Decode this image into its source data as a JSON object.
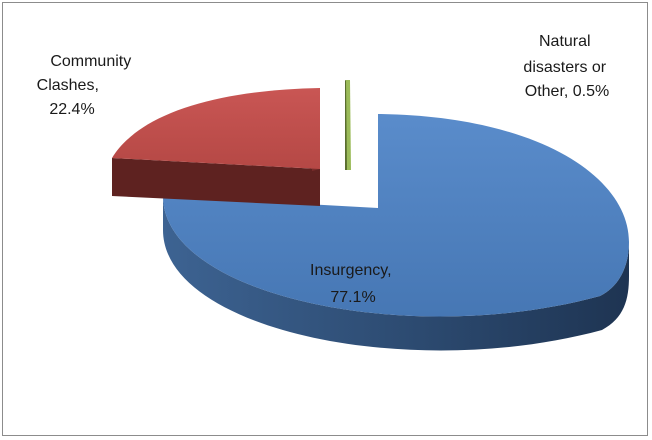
{
  "chart_data": {
    "type": "pie",
    "style": "3d-exploded",
    "slices": [
      {
        "category": "Insurgency",
        "value": 77.1,
        "label": [
          "Insurgency,",
          "77.1%"
        ],
        "color": "#4f81bd",
        "side_color": "#2c4a70"
      },
      {
        "category": "Community Clashes",
        "value": 22.4,
        "label": [
          "Community",
          "Clashes,",
          "22.4%"
        ],
        "color": "#c0504d",
        "side_color": "#5e2220"
      },
      {
        "category": "Natural disasters or Other",
        "value": 0.5,
        "label": [
          "Natural",
          "disasters or",
          "Other, 0.5%"
        ],
        "color": "#9bbb59",
        "side_color": "#5a6e2f"
      }
    ],
    "legend": "none"
  }
}
